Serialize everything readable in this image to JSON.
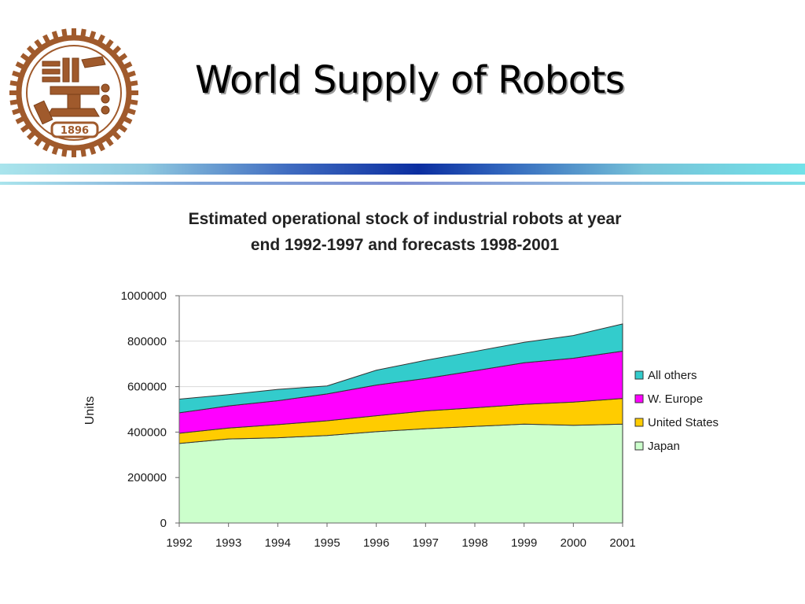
{
  "slide": {
    "title": "World Supply of Robots",
    "logo_year": "1896"
  },
  "colors": {
    "band_blue": "#0b2ea0",
    "band_cyan": "#72e2e8",
    "logo_brown": "#a05a2c"
  },
  "chart_data": {
    "type": "area",
    "stacked": true,
    "title_lines": [
      "Estimated operational stock of industrial robots at year",
      "end 1992-1997 and forecasts 1998-2001"
    ],
    "xlabel": "",
    "ylabel": "Units",
    "ylim": [
      0,
      1000000
    ],
    "y_ticks": [
      "1000000",
      "800000",
      "600000",
      "400000",
      "200000",
      "0"
    ],
    "x": [
      "1992",
      "1993",
      "1994",
      "1995",
      "1996",
      "1997",
      "1998",
      "1999",
      "2000",
      "2001"
    ],
    "grid": true,
    "legend_position": "right",
    "series": [
      {
        "name": "Japan",
        "color": "#ccffcc",
        "values": [
          350000,
          370000,
          375000,
          385000,
          402000,
          415000,
          425000,
          435000,
          430000,
          435000
        ]
      },
      {
        "name": "United States",
        "color": "#ffcc00",
        "values": [
          45000,
          48000,
          58000,
          65000,
          70000,
          78000,
          82000,
          87000,
          102000,
          113000
        ]
      },
      {
        "name": "W. Europe",
        "color": "#ff00ff",
        "values": [
          90000,
          97000,
          105000,
          118000,
          135000,
          143000,
          163000,
          183000,
          193000,
          208000
        ]
      },
      {
        "name": "All others",
        "color": "#33cccc",
        "values": [
          60000,
          50000,
          50000,
          35000,
          65000,
          80000,
          85000,
          90000,
          100000,
          120000
        ]
      }
    ]
  }
}
